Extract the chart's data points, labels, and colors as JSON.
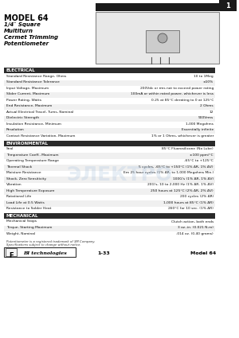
{
  "title_model": "MODEL 64",
  "title_line1": "1/4″ Square",
  "title_line2": "Multiturn",
  "title_line3": "Cermet Trimming",
  "title_line4": "Potentiometer",
  "page_number": "1",
  "section_electrical": "ELECTRICAL",
  "electrical_rows": [
    [
      "Standard Resistance Range, Ohms",
      "10 to 1Meg"
    ],
    [
      "Standard Resistance Tolerance",
      "±10%"
    ],
    [
      "Input Voltage, Maximum",
      "200Vdc or rms not to exceed power rating"
    ],
    [
      "Slider Current, Maximum",
      "100mA or within rated power, whichever is less"
    ],
    [
      "Power Rating, Watts",
      "0.25 at 85°C derating to 0 at 125°C"
    ],
    [
      "End Resistance, Maximum",
      "2 Ohms"
    ],
    [
      "Actual Electrical Travel, Turns, Nominal",
      "12"
    ],
    [
      "Dielectric Strength",
      "900Vrms"
    ],
    [
      "Insulation Resistance, Minimum",
      "1,000 Megohms"
    ],
    [
      "Resolution",
      "Essentially infinite"
    ],
    [
      "Contact Resistance Variation, Maximum",
      "1% or 1 Ohms, whichever is greater"
    ]
  ],
  "section_environmental": "ENVIRONMENTAL",
  "environmental_rows": [
    [
      "Seal",
      "85°C Fluorosilicone (No Lube)"
    ],
    [
      "Temperature Coeff., Maximum",
      "±100 ppm/°C"
    ],
    [
      "Operating Temperature Range",
      "-65°C to +125°C"
    ],
    [
      "Thermal Shock",
      "5 cycles, -65°C to +150°C (1% ΔR, 1% ΔV)"
    ],
    [
      "Moisture Resistance",
      "Ern 25 hour cycles (1% ΔR, to 1,000 Megohms Min.)"
    ],
    [
      "Shock, Zero Sensitivity",
      "100G's (1% ΔR, 1% ΔV)"
    ],
    [
      "Vibration",
      "20G's, 10 to 2,000 Hz (1% ΔR, 1% ΔV)"
    ],
    [
      "High Temperature Exposure",
      "250 hours at 125°C (2% ΔR, 2% ΔV)"
    ],
    [
      "Rotational Life",
      "200 cycles (2% ΔR)"
    ],
    [
      "Load Life at 0.5 Watts",
      "1,000 hours at 85°C (1% ΔR)"
    ],
    [
      "Resistance to Solder Heat",
      "260°C for 10 sec. (1% ΔR)"
    ]
  ],
  "section_mechanical": "MECHANICAL",
  "mechanical_rows": [
    [
      "Mechanical Stops",
      "Clutch action, both ends"
    ],
    [
      "Torque, Starting Maximum",
      "3 oz.-in. (0.021 N-m)"
    ],
    [
      "Weight, Nominal",
      ".014 oz. (0.40 grams)"
    ]
  ],
  "footnote1": "Potentiometer is a registered trademark of 3M Company.",
  "footnote2": "Specifications subject to change without notice.",
  "page_ref": "1-33",
  "model_ref": "Model 64",
  "bg_color": "#ffffff",
  "header_bg": "#1a1a1a",
  "header_fg": "#ffffff",
  "row_alt_color": "#f0f0f0",
  "row_color": "#ffffff",
  "section_header_bg": "#2a2a2a",
  "section_header_fg": "#ffffff"
}
